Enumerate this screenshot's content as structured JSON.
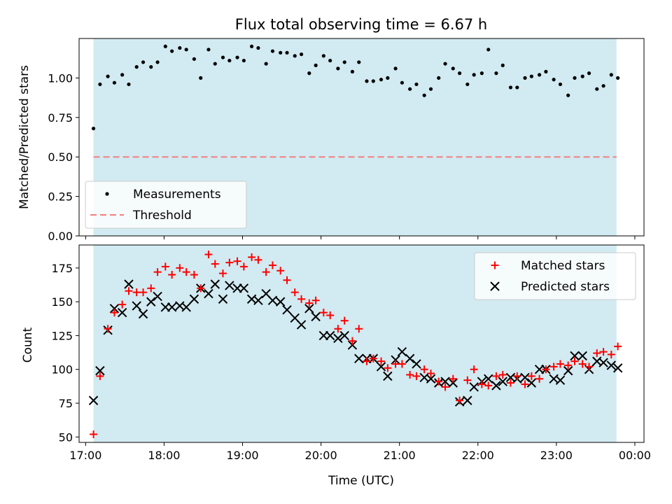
{
  "figure": {
    "title": "Flux total observing time = 6.67 h"
  },
  "colors": {
    "shade": "#add8e6",
    "threshold": "#f08080",
    "matched": "#ff0000",
    "predicted": "#000000",
    "measurements": "#000000"
  },
  "chart_data": [
    {
      "type": "scatter",
      "title": "",
      "xlabel": "",
      "ylabel": "Matched/Predicted stars",
      "xlim": [
        "16:55",
        "00:07"
      ],
      "ylim": [
        0,
        1.25
      ],
      "x_ticks": [
        "17:00",
        "18:00",
        "19:00",
        "20:00",
        "21:00",
        "22:00",
        "23:00",
        "00:00"
      ],
      "y_ticks": [
        "0.00",
        "0.25",
        "0.50",
        "0.75",
        "1.00"
      ],
      "shaded_span": [
        "17:06",
        "23:46"
      ],
      "legend_position": "lower-left",
      "threshold": {
        "name": "Threshold",
        "y": 0.5
      },
      "series": [
        {
          "name": "Measurements",
          "x": [
            "17:06",
            "17:11",
            "17:17",
            "17:22",
            "17:28",
            "17:33",
            "17:39",
            "17:44",
            "17:50",
            "17:55",
            "18:01",
            "18:06",
            "18:12",
            "18:17",
            "18:23",
            "18:28",
            "18:34",
            "18:39",
            "18:45",
            "18:50",
            "18:56",
            "19:01",
            "19:07",
            "19:12",
            "19:18",
            "19:23",
            "19:29",
            "19:34",
            "19:40",
            "19:45",
            "19:51",
            "19:56",
            "20:02",
            "20:07",
            "20:13",
            "20:18",
            "20:24",
            "20:29",
            "20:35",
            "20:40",
            "20:46",
            "20:51",
            "20:57",
            "21:02",
            "21:08",
            "21:13",
            "21:19",
            "21:24",
            "21:30",
            "21:35",
            "21:41",
            "21:46",
            "21:52",
            "21:57",
            "22:03",
            "22:08",
            "22:14",
            "22:19",
            "22:25",
            "22:30",
            "22:36",
            "22:41",
            "22:47",
            "22:52",
            "22:58",
            "23:03",
            "23:09",
            "23:14",
            "23:20",
            "23:25",
            "23:31",
            "23:36",
            "23:42",
            "23:47"
          ],
          "y": [
            0.68,
            0.96,
            1.01,
            0.97,
            1.02,
            0.96,
            1.07,
            1.1,
            1.07,
            1.1,
            1.2,
            1.17,
            1.19,
            1.18,
            1.12,
            1.0,
            1.18,
            1.09,
            1.13,
            1.11,
            1.13,
            1.11,
            1.2,
            1.19,
            1.09,
            1.17,
            1.16,
            1.16,
            1.14,
            1.15,
            1.03,
            1.08,
            1.14,
            1.11,
            1.06,
            1.1,
            1.04,
            1.1,
            0.98,
            0.98,
            0.99,
            1.0,
            1.06,
            0.97,
            0.93,
            0.96,
            0.89,
            0.93,
            1.0,
            1.09,
            1.06,
            1.03,
            0.96,
            1.02,
            1.03,
            1.18,
            1.03,
            1.08,
            0.94,
            0.94,
            1.0,
            1.01,
            1.02,
            1.04,
            0.99,
            0.96,
            0.89,
            1.0,
            1.01,
            1.03,
            0.93,
            0.95,
            1.02,
            1.0
          ]
        }
      ]
    },
    {
      "type": "scatter",
      "title": "",
      "xlabel": "Time (UTC)",
      "ylabel": "Count",
      "xlim": [
        "16:55",
        "00:07"
      ],
      "ylim": [
        46,
        192
      ],
      "x_ticks": [
        "17:00",
        "18:00",
        "19:00",
        "20:00",
        "21:00",
        "22:00",
        "23:00",
        "00:00"
      ],
      "y_ticks": [
        "50",
        "75",
        "100",
        "125",
        "150",
        "175"
      ],
      "shaded_span": [
        "17:06",
        "23:46"
      ],
      "legend_position": "upper-right",
      "series": [
        {
          "name": "Matched stars",
          "marker": "plus",
          "x": [
            "17:06",
            "17:11",
            "17:17",
            "17:22",
            "17:28",
            "17:33",
            "17:39",
            "17:44",
            "17:50",
            "17:55",
            "18:01",
            "18:06",
            "18:12",
            "18:17",
            "18:23",
            "18:28",
            "18:34",
            "18:39",
            "18:45",
            "18:50",
            "18:56",
            "19:01",
            "19:07",
            "19:12",
            "19:18",
            "19:23",
            "19:29",
            "19:34",
            "19:40",
            "19:45",
            "19:51",
            "19:56",
            "20:02",
            "20:07",
            "20:13",
            "20:18",
            "20:24",
            "20:29",
            "20:35",
            "20:40",
            "20:46",
            "20:51",
            "20:57",
            "21:02",
            "21:08",
            "21:13",
            "21:19",
            "21:24",
            "21:30",
            "21:35",
            "21:41",
            "21:46",
            "21:52",
            "21:57",
            "22:03",
            "22:08",
            "22:14",
            "22:19",
            "22:25",
            "22:30",
            "22:36",
            "22:41",
            "22:47",
            "22:52",
            "22:58",
            "23:03",
            "23:09",
            "23:14",
            "23:20",
            "23:25",
            "23:31",
            "23:36",
            "23:42",
            "23:47"
          ],
          "y": [
            52,
            95,
            130,
            142,
            148,
            158,
            157,
            157,
            160,
            172,
            176,
            170,
            175,
            172,
            170,
            160,
            185,
            178,
            171,
            179,
            180,
            176,
            183,
            181,
            172,
            177,
            173,
            166,
            157,
            152,
            149,
            151,
            142,
            140,
            130,
            136,
            121,
            130,
            106,
            108,
            106,
            101,
            104,
            104,
            96,
            95,
            100,
            97,
            91,
            87,
            93,
            77,
            92,
            100,
            89,
            88,
            95,
            96,
            90,
            95,
            89,
            95,
            93,
            100,
            102,
            104,
            103,
            106,
            104,
            102,
            112,
            113,
            111,
            117
          ]
        },
        {
          "name": "Predicted stars",
          "marker": "x",
          "x": [
            "17:06",
            "17:11",
            "17:17",
            "17:22",
            "17:28",
            "17:33",
            "17:39",
            "17:44",
            "17:50",
            "17:55",
            "18:01",
            "18:06",
            "18:12",
            "18:17",
            "18:23",
            "18:28",
            "18:34",
            "18:39",
            "18:45",
            "18:50",
            "18:56",
            "19:01",
            "19:07",
            "19:12",
            "19:18",
            "19:23",
            "19:29",
            "19:34",
            "19:40",
            "19:45",
            "19:51",
            "19:56",
            "20:02",
            "20:07",
            "20:13",
            "20:18",
            "20:24",
            "20:29",
            "20:35",
            "20:40",
            "20:46",
            "20:51",
            "20:57",
            "21:02",
            "21:08",
            "21:13",
            "21:19",
            "21:24",
            "21:30",
            "21:35",
            "21:41",
            "21:46",
            "21:52",
            "21:57",
            "22:03",
            "22:08",
            "22:14",
            "22:19",
            "22:25",
            "22:30",
            "22:36",
            "22:41",
            "22:47",
            "22:52",
            "22:58",
            "23:03",
            "23:09",
            "23:14",
            "23:20",
            "23:25",
            "23:31",
            "23:36",
            "23:42",
            "23:47"
          ],
          "y": [
            77,
            99,
            129,
            145,
            142,
            163,
            147,
            141,
            150,
            154,
            146,
            146,
            147,
            146,
            152,
            160,
            156,
            163,
            152,
            162,
            160,
            160,
            152,
            151,
            156,
            151,
            150,
            144,
            138,
            133,
            145,
            139,
            125,
            125,
            123,
            125,
            118,
            108,
            108,
            108,
            102,
            95,
            107,
            113,
            108,
            104,
            94,
            93,
            90,
            91,
            90,
            76,
            77,
            87,
            91,
            93,
            88,
            91,
            94,
            93,
            94,
            90,
            100,
            100,
            93,
            92,
            99,
            110,
            110,
            100,
            106,
            105,
            103,
            101
          ]
        }
      ]
    }
  ]
}
